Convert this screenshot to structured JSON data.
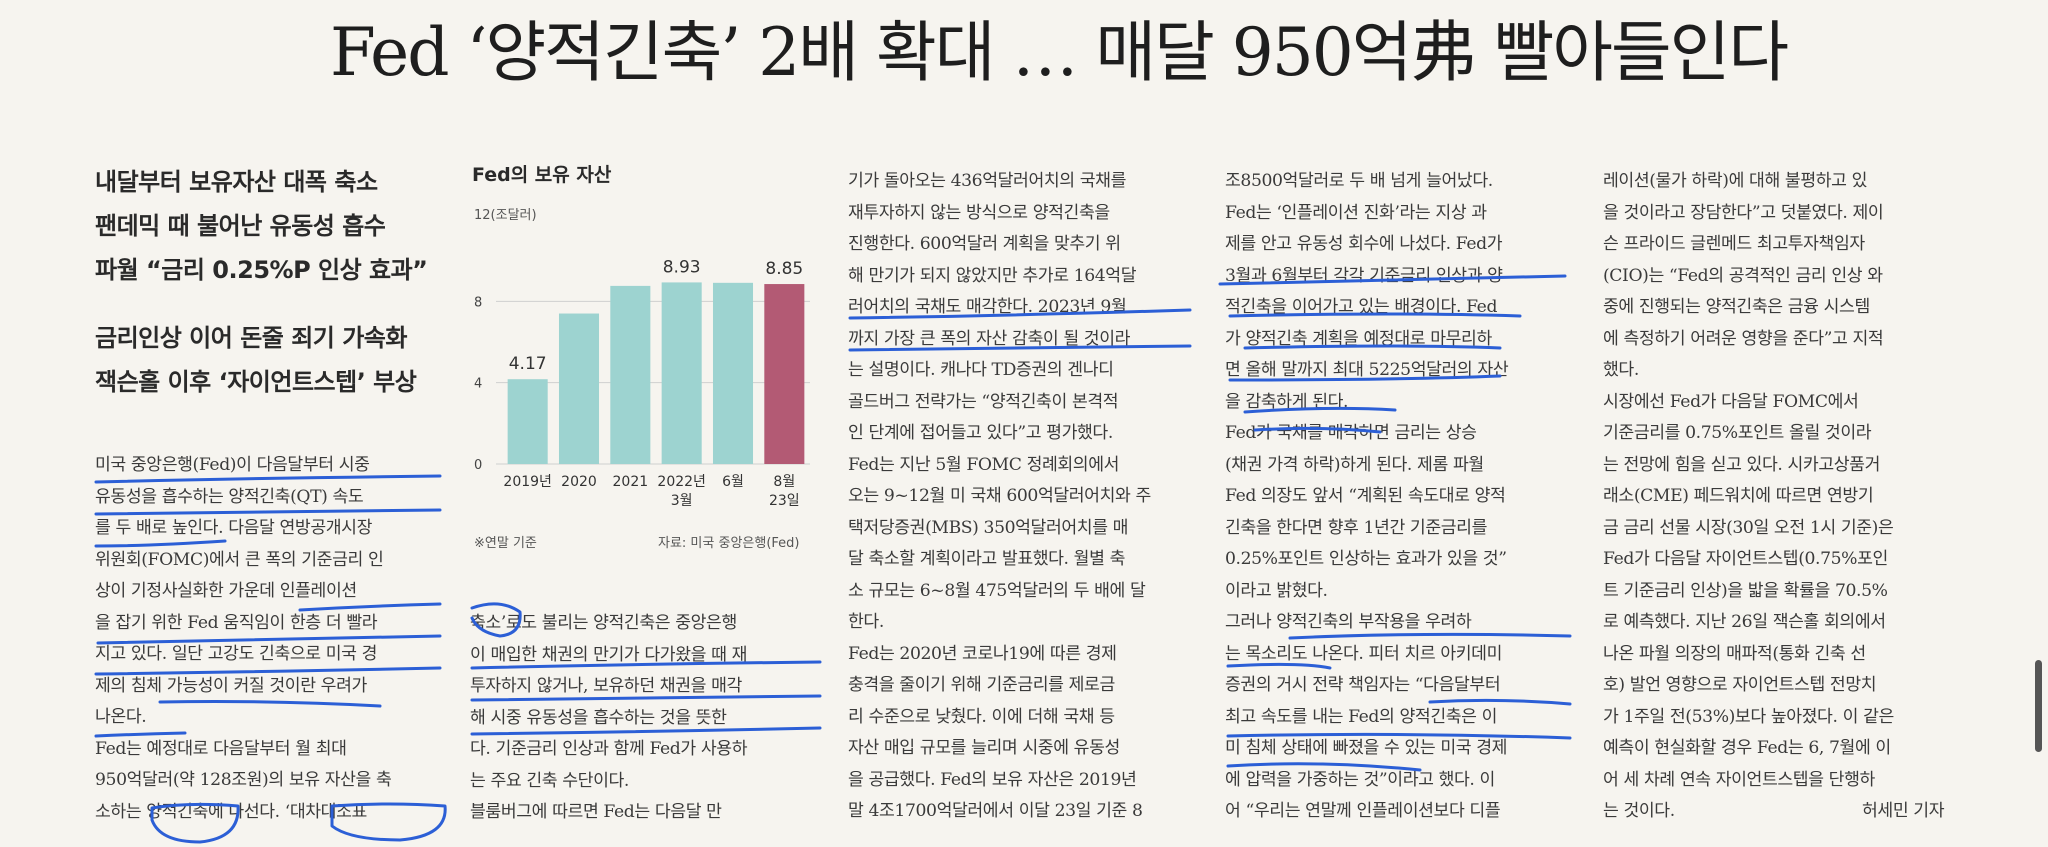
{
  "headline": "Fed ‘양적긴축’ 2배 확대 … 매달 950억弗 빨아들인다",
  "subheads": [
    "내달부터 보유자산 대폭 축소",
    "팬데믹 때 불어난 유동성 흡수",
    "파월 “금리 0.25%P 인상 효과”",
    "금리인상 이어 돈줄 죄기 가속화",
    "잭슨홀 이후 ‘자이언트스텝’ 부상"
  ],
  "columns": {
    "col1": [
      "미국 중앙은행(Fed)이 다음달부터 시중",
      "유동성을 흡수하는 양적긴축(QT) 속도",
      "를 두 배로 높인다. 다음달 연방공개시장",
      "위원회(FOMC)에서 큰 폭의 기준금리 인",
      "상이 기정사실화한 가운데 인플레이션",
      "을 잡기 위한 Fed 움직임이 한층 더 빨라",
      "지고 있다. 일단 고강도 긴축으로 미국 경",
      "제의 침체 가능성이 커질 것이란 우려가",
      "나온다.",
      " Fed는 예정대로 다음달부터 월 최대",
      "950억달러(약 128조원)의 보유 자산을 축",
      "소하는 양적긴축에 나선다. ‘대차대조표"
    ],
    "col2_tail": [
      "축소’로도 불리는 양적긴축은 중앙은행",
      "이 매입한 채권의 만기가 다가왔을 때 재",
      "투자하지 않거나, 보유하던 채권을 매각",
      "해 시중 유동성을 흡수하는 것을 뜻한",
      "다. 기준금리 인상과 함께 Fed가 사용하",
      "는 주요 긴축 수단이다.",
      " 블룸버그에 따르면 Fed는 다음달 만"
    ],
    "col3": [
      "기가 돌아오는 436억달러어치의 국채를",
      "재투자하지 않는 방식으로 양적긴축을",
      "진행한다. 600억달러 계획을 맞추기 위",
      "해 만기가 되지 않았지만 추가로 164억달",
      "러어치의 국채도 매각한다. 2023년 9월",
      "까지 가장 큰 폭의 자산 감축이 될 것이라",
      "는 설명이다. 캐나다 TD증권의 겐나디",
      "골드버그 전략가는 “양적긴축이 본격적",
      "인 단계에 접어들고 있다”고 평가했다.",
      " Fed는 지난 5월 FOMC 정례회의에서",
      "오는 9~12월 미 국채 600억달러어치와 주",
      "택저당증권(MBS) 350억달러어치를 매",
      "달 축소할 계획이라고 발표했다. 월별 축",
      "소 규모는 6~8월 475억달러의 두 배에 달",
      "한다.",
      " Fed는 2020년 코로나19에 따른 경제",
      "충격을 줄이기 위해 기준금리를 제로금",
      "리 수준으로 낮췄다. 이에 더해 국채 등",
      "자산 매입 규모를 늘리며 시중에 유동성",
      "을 공급했다. Fed의 보유 자산은 2019년",
      "말 4조1700억달러에서 이달 23일 기준 8"
    ],
    "col4": [
      "조8500억달러로 두 배 넘게 늘어났다.",
      " Fed는 ‘인플레이션 진화’라는 지상 과",
      "제를 안고 유동성 회수에 나섰다. Fed가",
      "3월과 6월부터 각각 기준금리 인상과 양",
      "적긴축을 이어가고 있는 배경이다. Fed",
      "가 양적긴축 계획을 예정대로 마무리하",
      "면 올해 말까지 최대 5225억달러의 자산",
      "을 감축하게 된다.",
      " Fed가 국채를 매각하면 금리는 상승",
      "(채권 가격 하락)하게 된다. 제롬 파월",
      "Fed 의장도 앞서 “계획된 속도대로 양적",
      "긴축을 한다면 향후 1년간 기준금리를",
      "0.25%포인트 인상하는 효과가 있을 것”",
      "이라고 밝혔다.",
      " 그러나 양적긴축의 부작용을 우려하",
      "는 목소리도 나온다. 피터 치르 아키데미",
      "증권의 거시 전략 책임자는 “다음달부터",
      "최고 속도를 내는 Fed의 양적긴축은 이",
      "미 침체 상태에 빠졌을 수 있는 미국 경제",
      "에 압력을 가중하는 것”이라고 했다. 이",
      "어 “우리는 연말께 인플레이션보다 디플"
    ],
    "col5": [
      "레이션(물가 하락)에 대해 불평하고 있",
      "을 것이라고 장담한다”고 덧붙였다. 제이",
      "슨 프라이드 글렌메드 최고투자책임자",
      "(CIO)는 “Fed의 공격적인 금리 인상 와",
      "중에 진행되는 양적긴축은 금융 시스템",
      "에 측정하기 어려운 영향을 준다”고 지적",
      "했다.",
      " 시장에선 Fed가 다음달 FOMC에서",
      "기준금리를 0.75%포인트 올릴 것이라",
      "는 전망에 힘을 싣고 있다. 시카고상품거",
      "래소(CME) 페드워치에 따르면 연방기",
      "금 금리 선물 시장(30일 오전 1시 기준)은",
      "Fed가 다음달 자이언트스텝(0.75%포인",
      "트 기준금리 인상)을 밟을 확률을 70.5%",
      "로 예측했다. 지난 26일 잭슨홀 회의에서",
      "나온 파월 의장의 매파적(통화 긴축 선",
      "호) 발언 영향으로 자이언트스텝 전망치",
      "가 1주일 전(53%)보다 높아졌다. 이 같은",
      "예측이 현실화할 경우 Fed는 6, 7월에 이",
      "어 세 차례 연속 자이언트스텝을 단행하",
      "는 것이다."
    ],
    "byline": "허세민 기자"
  },
  "chart_data": {
    "type": "bar",
    "title": "Fed의 보유 자산",
    "unit": "12(조달러)",
    "categories": [
      "2019년",
      "2020",
      "2021",
      "2022년 3월",
      "6월",
      "8월 23일"
    ],
    "tick_labels": [
      [
        "2019년"
      ],
      [
        "2020"
      ],
      [
        "2021"
      ],
      [
        "2022년",
        "3월"
      ],
      [
        "6월"
      ],
      [
        "8월",
        "23일"
      ]
    ],
    "values": [
      4.17,
      7.4,
      8.76,
      8.93,
      8.91,
      8.85
    ],
    "data_labels": [
      "4.17",
      "",
      "",
      "8.93",
      "",
      "8.85"
    ],
    "yticks": [
      "0",
      "4",
      "8"
    ],
    "ylim": [
      0,
      12
    ],
    "highlight_index": 5,
    "colors": {
      "bar": "#9dd3d0",
      "highlight": "#b35a74",
      "grid": "#cfcfcf"
    },
    "note": "※연말 기준",
    "source": "자료: 미국 중앙은행(Fed)"
  }
}
